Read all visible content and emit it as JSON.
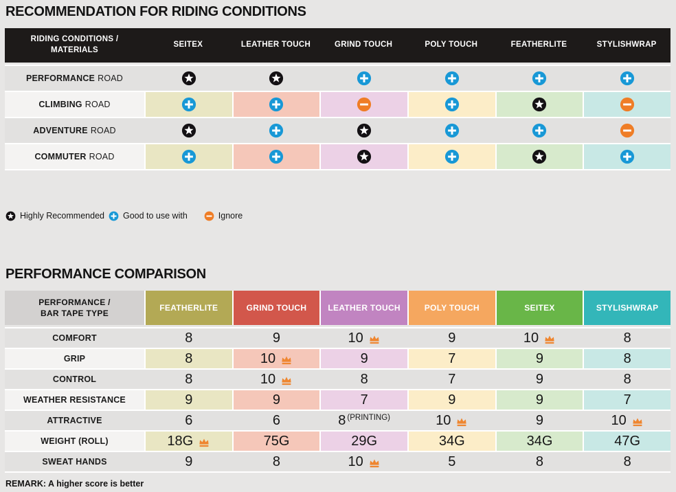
{
  "colors": {
    "page_bg": "#e7e6e5",
    "t1_header_bg": "#1d1a19",
    "row_gray": "#e2e1e0",
    "row_label_light": "#f4f3f2",
    "t2_corner_bg": "#d3d1d0",
    "star": "#141114",
    "plus": "#1898d6",
    "minus": "#ef7d26",
    "crown": "#ef8630",
    "tints": [
      "#e9e6c3",
      "#f5c7b9",
      "#ecd1e6",
      "#fcedc8",
      "#d7eacc",
      "#c8e8e5"
    ],
    "brand": {
      "FEATHERLITE": "#b3a955",
      "GRIND TOUCH": "#d2574b",
      "LEATHER TOUCH": "#c184c1",
      "POLY TOUCH": "#f5a75f",
      "SEITEX": "#69b648",
      "STYLISHWRAP": "#33b6b9"
    }
  },
  "section1": {
    "title": "RECOMMENDATION FOR RIDING CONDITIONS",
    "corner_header": [
      "RIDING CONDITIONS /",
      "MATERIALS"
    ],
    "columns": [
      "SEITEX",
      "LEATHER TOUCH",
      "GRIND TOUCH",
      "POLY TOUCH",
      "FEATHERLITE",
      "STYLISHWRAP"
    ],
    "rows": [
      {
        "label_strong": "PERFORMANCE",
        "label_normal": "ROAD",
        "tinted": false,
        "ratings": [
          "star",
          "star",
          "plus",
          "plus",
          "plus",
          "plus"
        ]
      },
      {
        "label_strong": "CLIMBING",
        "label_normal": "ROAD",
        "tinted": true,
        "ratings": [
          "plus",
          "plus",
          "minus",
          "plus",
          "star",
          "minus"
        ]
      },
      {
        "label_strong": "ADVENTURE",
        "label_normal": "ROAD",
        "tinted": false,
        "ratings": [
          "star",
          "plus",
          "star",
          "plus",
          "plus",
          "minus"
        ]
      },
      {
        "label_strong": "COMMUTER",
        "label_normal": "ROAD",
        "tinted": true,
        "ratings": [
          "plus",
          "plus",
          "star",
          "plus",
          "star",
          "plus"
        ]
      }
    ],
    "legend": [
      {
        "icon": "star",
        "label": "Highly Recommended"
      },
      {
        "icon": "plus",
        "label": "Good to use with"
      },
      {
        "icon": "minus",
        "label": "Ignore"
      }
    ]
  },
  "section2": {
    "title": "PERFORMANCE COMPARISON",
    "corner_header": [
      "PERFORMANCE /",
      "BAR TAPE TYPE"
    ],
    "columns": [
      "FEATHERLITE",
      "GRIND TOUCH",
      "LEATHER TOUCH",
      "POLY TOUCH",
      "SEITEX",
      "STYLISHWRAP"
    ],
    "rows": [
      {
        "label": "COMFORT",
        "tinted": false,
        "cells": [
          {
            "v": "8"
          },
          {
            "v": "9"
          },
          {
            "v": "10",
            "crown": true
          },
          {
            "v": "9"
          },
          {
            "v": "10",
            "crown": true
          },
          {
            "v": "8"
          }
        ]
      },
      {
        "label": "GRIP",
        "tinted": true,
        "cells": [
          {
            "v": "8"
          },
          {
            "v": "10",
            "crown": true
          },
          {
            "v": "9"
          },
          {
            "v": "7"
          },
          {
            "v": "9"
          },
          {
            "v": "8"
          }
        ]
      },
      {
        "label": "CONTROL",
        "tinted": false,
        "cells": [
          {
            "v": "8"
          },
          {
            "v": "10",
            "crown": true
          },
          {
            "v": "8"
          },
          {
            "v": "7"
          },
          {
            "v": "9"
          },
          {
            "v": "8"
          }
        ]
      },
      {
        "label": "WEATHER RESISTANCE",
        "tinted": true,
        "cells": [
          {
            "v": "9"
          },
          {
            "v": "9"
          },
          {
            "v": "7"
          },
          {
            "v": "9"
          },
          {
            "v": "9"
          },
          {
            "v": "7"
          }
        ]
      },
      {
        "label": "ATTRACTIVE",
        "tinted": false,
        "cells": [
          {
            "v": "6"
          },
          {
            "v": "6"
          },
          {
            "v": "8",
            "note": "(PRINTING)"
          },
          {
            "v": "10",
            "crown": true
          },
          {
            "v": "9"
          },
          {
            "v": "10",
            "crown": true
          }
        ]
      },
      {
        "label": "WEIGHT (ROLL)",
        "tinted": true,
        "cells": [
          {
            "v": "18G",
            "crown": true
          },
          {
            "v": "75G"
          },
          {
            "v": "29G"
          },
          {
            "v": "34G"
          },
          {
            "v": "34G"
          },
          {
            "v": "47G"
          }
        ]
      },
      {
        "label": "SWEAT HANDS",
        "tinted": false,
        "cells": [
          {
            "v": "9"
          },
          {
            "v": "8"
          },
          {
            "v": "10",
            "crown": true
          },
          {
            "v": "5"
          },
          {
            "v": "8"
          },
          {
            "v": "8"
          }
        ]
      }
    ],
    "remark": "REMARK: A higher score is better"
  },
  "chart_data": [
    {
      "type": "table",
      "title": "RECOMMENDATION FOR RIDING CONDITIONS",
      "row_header": "RIDING CONDITIONS / MATERIALS",
      "columns": [
        "SEITEX",
        "LEATHER TOUCH",
        "GRIND TOUCH",
        "POLY TOUCH",
        "FEATHERLITE",
        "STYLISHWRAP"
      ],
      "rows": [
        "PERFORMANCE ROAD",
        "CLIMBING ROAD",
        "ADVENTURE ROAD",
        "COMMUTER ROAD"
      ],
      "values": [
        [
          "Highly Recommended",
          "Highly Recommended",
          "Good to use with",
          "Good to use with",
          "Good to use with",
          "Good to use with"
        ],
        [
          "Good to use with",
          "Good to use with",
          "Ignore",
          "Good to use with",
          "Highly Recommended",
          "Ignore"
        ],
        [
          "Highly Recommended",
          "Good to use with",
          "Highly Recommended",
          "Good to use with",
          "Good to use with",
          "Ignore"
        ],
        [
          "Good to use with",
          "Good to use with",
          "Highly Recommended",
          "Good to use with",
          "Highly Recommended",
          "Good to use with"
        ]
      ],
      "legend": [
        "Highly Recommended",
        "Good to use with",
        "Ignore"
      ]
    },
    {
      "type": "table",
      "title": "PERFORMANCE COMPARISON",
      "row_header": "PERFORMANCE / BAR TAPE TYPE",
      "columns": [
        "FEATHERLITE",
        "GRIND TOUCH",
        "LEATHER TOUCH",
        "POLY TOUCH",
        "SEITEX",
        "STYLISHWRAP"
      ],
      "rows": [
        "COMFORT",
        "GRIP",
        "CONTROL",
        "WEATHER RESISTANCE",
        "ATTRACTIVE",
        "WEIGHT (ROLL)",
        "SWEAT HANDS"
      ],
      "values": [
        [
          8,
          9,
          10,
          9,
          10,
          8
        ],
        [
          8,
          10,
          9,
          7,
          9,
          8
        ],
        [
          8,
          10,
          8,
          7,
          9,
          8
        ],
        [
          9,
          9,
          7,
          9,
          9,
          7
        ],
        [
          6,
          6,
          "8 (PRINTING)",
          10,
          9,
          10
        ],
        [
          "18G",
          "75G",
          "29G",
          "34G",
          "34G",
          "47G"
        ],
        [
          9,
          8,
          10,
          5,
          8,
          8
        ]
      ],
      "crowns": [
        [
          false,
          false,
          true,
          false,
          true,
          false
        ],
        [
          false,
          true,
          false,
          false,
          false,
          false
        ],
        [
          false,
          true,
          false,
          false,
          false,
          false
        ],
        [
          false,
          false,
          false,
          false,
          false,
          false
        ],
        [
          false,
          false,
          false,
          true,
          false,
          true
        ],
        [
          true,
          false,
          false,
          false,
          false,
          false
        ],
        [
          false,
          false,
          true,
          false,
          false,
          false
        ]
      ],
      "remark": "REMARK: A higher score is better"
    }
  ]
}
